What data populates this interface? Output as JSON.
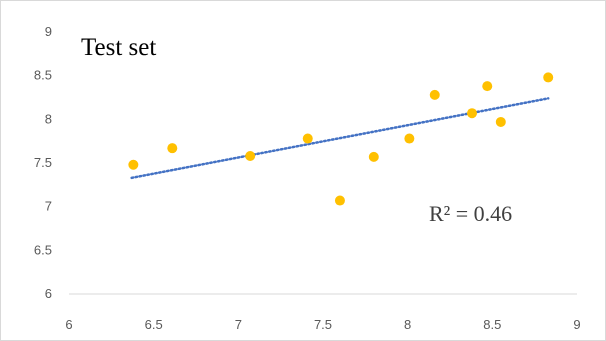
{
  "chart_data": {
    "type": "scatter",
    "title": "Test set",
    "xlabel": "",
    "ylabel": "",
    "xlim": [
      6,
      9
    ],
    "ylim": [
      6,
      9
    ],
    "x_ticks": [
      "6",
      "6.5",
      "7",
      "7.5",
      "8",
      "8.5",
      "9"
    ],
    "y_ticks": [
      "6",
      "6.5",
      "7",
      "7.5",
      "8",
      "8.5",
      "9"
    ],
    "grid": false,
    "legend": "none",
    "series": [
      {
        "points": [
          {
            "x": 6.38,
            "y": 7.48
          },
          {
            "x": 6.61,
            "y": 7.67
          },
          {
            "x": 7.07,
            "y": 7.58
          },
          {
            "x": 7.41,
            "y": 7.78
          },
          {
            "x": 7.6,
            "y": 7.07
          },
          {
            "x": 7.8,
            "y": 7.57
          },
          {
            "x": 8.01,
            "y": 7.78
          },
          {
            "x": 8.16,
            "y": 8.28
          },
          {
            "x": 8.38,
            "y": 8.07
          },
          {
            "x": 8.47,
            "y": 8.38
          },
          {
            "x": 8.55,
            "y": 7.97
          },
          {
            "x": 8.83,
            "y": 8.48
          }
        ],
        "color": "#ffc000"
      }
    ],
    "trendline": {
      "type": "linear",
      "from": {
        "x": 6.37,
        "y": 7.33
      },
      "to": {
        "x": 8.83,
        "y": 8.24
      },
      "color": "#4472c4",
      "style": "dotted"
    },
    "annotations": [
      {
        "text": "R² = 0.46"
      }
    ]
  }
}
